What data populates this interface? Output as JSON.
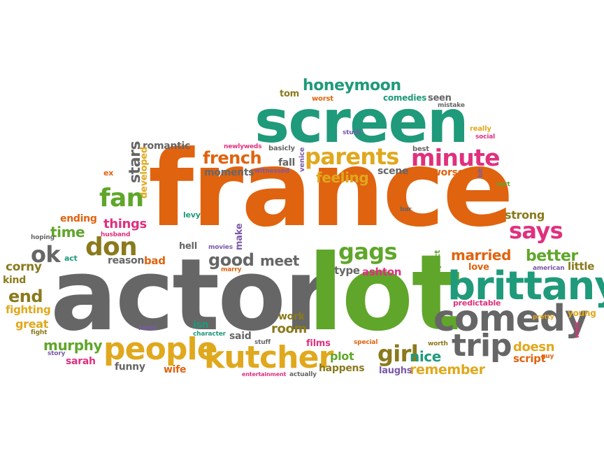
{
  "colors": {
    "orange": "#e0630f",
    "gray": "#666666",
    "green": "#5fa62a",
    "teal": "#1f9a7a",
    "yellow": "#e0a81c",
    "magenta": "#e0307e",
    "olive": "#8a7a1c",
    "purple": "#7a5aa8",
    "blue": "#5a8ac8"
  },
  "words": [
    {
      "text": "france",
      "color": "orange"
    },
    {
      "text": "actor",
      "color": "gray"
    },
    {
      "text": "lot",
      "color": "green"
    },
    {
      "text": "screen",
      "color": "teal"
    },
    {
      "text": "brittany",
      "color": "teal"
    },
    {
      "text": "comedy",
      "color": "gray"
    },
    {
      "text": "kutcher",
      "color": "yellow"
    },
    {
      "text": "people",
      "color": "yellow"
    },
    {
      "text": "trip",
      "color": "gray"
    },
    {
      "text": "parents",
      "color": "yellow"
    },
    {
      "text": "minute",
      "color": "magenta"
    },
    {
      "text": "honeymoon",
      "color": "teal"
    },
    {
      "text": "says",
      "color": "magenta"
    },
    {
      "text": "fan",
      "color": "green"
    },
    {
      "text": "don",
      "color": "olive"
    },
    {
      "text": "gags",
      "color": "green"
    },
    {
      "text": "girl",
      "color": "olive"
    },
    {
      "text": "french",
      "color": "orange"
    },
    {
      "text": "good",
      "color": "gray"
    },
    {
      "text": "ok",
      "color": "gray"
    },
    {
      "text": "stars",
      "color": "gray"
    },
    {
      "text": "better",
      "color": "green"
    },
    {
      "text": "married",
      "color": "orange"
    },
    {
      "text": "feeling",
      "color": "yellow"
    },
    {
      "text": "murphy",
      "color": "green"
    },
    {
      "text": "end",
      "color": "olive"
    },
    {
      "text": "time",
      "color": "green"
    },
    {
      "text": "things",
      "color": "magenta"
    },
    {
      "text": "doesn",
      "color": "yellow"
    },
    {
      "text": "remember",
      "color": "yellow"
    },
    {
      "text": "meet",
      "color": "gray"
    },
    {
      "text": "nice",
      "color": "teal"
    },
    {
      "text": "room",
      "color": "olive"
    },
    {
      "text": "script",
      "color": "orange"
    },
    {
      "text": "plot",
      "color": "green"
    },
    {
      "text": "strong",
      "color": "olive"
    },
    {
      "text": "corny",
      "color": "olive"
    },
    {
      "text": "great",
      "color": "yellow"
    },
    {
      "text": "fighting",
      "color": "yellow"
    },
    {
      "text": "ashton",
      "color": "magenta"
    },
    {
      "text": "little",
      "color": "olive"
    },
    {
      "text": "fall",
      "color": "gray"
    },
    {
      "text": "worse",
      "color": "orange"
    },
    {
      "text": "scene",
      "color": "gray"
    },
    {
      "text": "moments",
      "color": "gray"
    },
    {
      "text": "romantic",
      "color": "gray"
    },
    {
      "text": "developed",
      "color": "yellow"
    },
    {
      "text": "ending",
      "color": "orange"
    },
    {
      "text": "kind",
      "color": "olive"
    },
    {
      "text": "reason",
      "color": "gray"
    },
    {
      "text": "bad",
      "color": "orange"
    },
    {
      "text": "hell",
      "color": "gray"
    },
    {
      "text": "type",
      "color": "gray"
    },
    {
      "text": "work",
      "color": "olive"
    },
    {
      "text": "said",
      "color": "gray"
    },
    {
      "text": "films",
      "color": "magenta"
    },
    {
      "text": "happens",
      "color": "olive"
    },
    {
      "text": "laughs",
      "color": "purple"
    },
    {
      "text": "funny",
      "color": "gray"
    },
    {
      "text": "wife",
      "color": "orange"
    },
    {
      "text": "sarah",
      "color": "magenta"
    },
    {
      "text": "isn",
      "color": "teal"
    },
    {
      "text": "comedies",
      "color": "teal"
    },
    {
      "text": "seen",
      "color": "gray"
    },
    {
      "text": "tom",
      "color": "olive"
    },
    {
      "text": "worst",
      "color": "orange"
    },
    {
      "text": "love",
      "color": "orange"
    },
    {
      "text": "predictable",
      "color": "magenta"
    },
    {
      "text": "young",
      "color": "yellow"
    },
    {
      "text": "expect",
      "color": "green"
    },
    {
      "text": "make",
      "color": "purple"
    },
    {
      "text": "levy",
      "color": "teal"
    },
    {
      "text": "venice",
      "color": "purple"
    },
    {
      "text": "basicly",
      "color": "gray"
    },
    {
      "text": "best",
      "color": "gray"
    },
    {
      "text": "mistake",
      "color": "gray"
    },
    {
      "text": "really",
      "color": "yellow"
    },
    {
      "text": "social",
      "color": "magenta"
    },
    {
      "text": "stuck",
      "color": "purple"
    },
    {
      "text": "newlyweds",
      "color": "magenta"
    },
    {
      "text": "witnessed",
      "color": "purple"
    },
    {
      "text": "bit",
      "color": "purple"
    },
    {
      "text": "sort",
      "color": "green"
    },
    {
      "text": "ex",
      "color": "orange"
    },
    {
      "text": "hoping",
      "color": "gray"
    },
    {
      "text": "act",
      "color": "teal"
    },
    {
      "text": "husband",
      "color": "magenta"
    },
    {
      "text": "movies",
      "color": "purple"
    },
    {
      "text": "marry",
      "color": "orange"
    },
    {
      "text": "bar",
      "color": "gray"
    },
    {
      "text": "american",
      "color": "purple"
    },
    {
      "text": "pretty",
      "color": "yellow"
    },
    {
      "text": "want",
      "color": "magenta"
    },
    {
      "text": "guy",
      "color": "orange"
    },
    {
      "text": "worth",
      "color": "olive"
    },
    {
      "text": "special",
      "color": "orange"
    },
    {
      "text": "actually",
      "color": "gray"
    },
    {
      "text": "entertainment",
      "color": "magenta"
    },
    {
      "text": "stuff",
      "color": "gray"
    },
    {
      "text": "character",
      "color": "teal"
    },
    {
      "text": "hotel",
      "color": "purple"
    },
    {
      "text": "fight",
      "color": "olive"
    },
    {
      "text": "story",
      "color": "purple"
    }
  ]
}
